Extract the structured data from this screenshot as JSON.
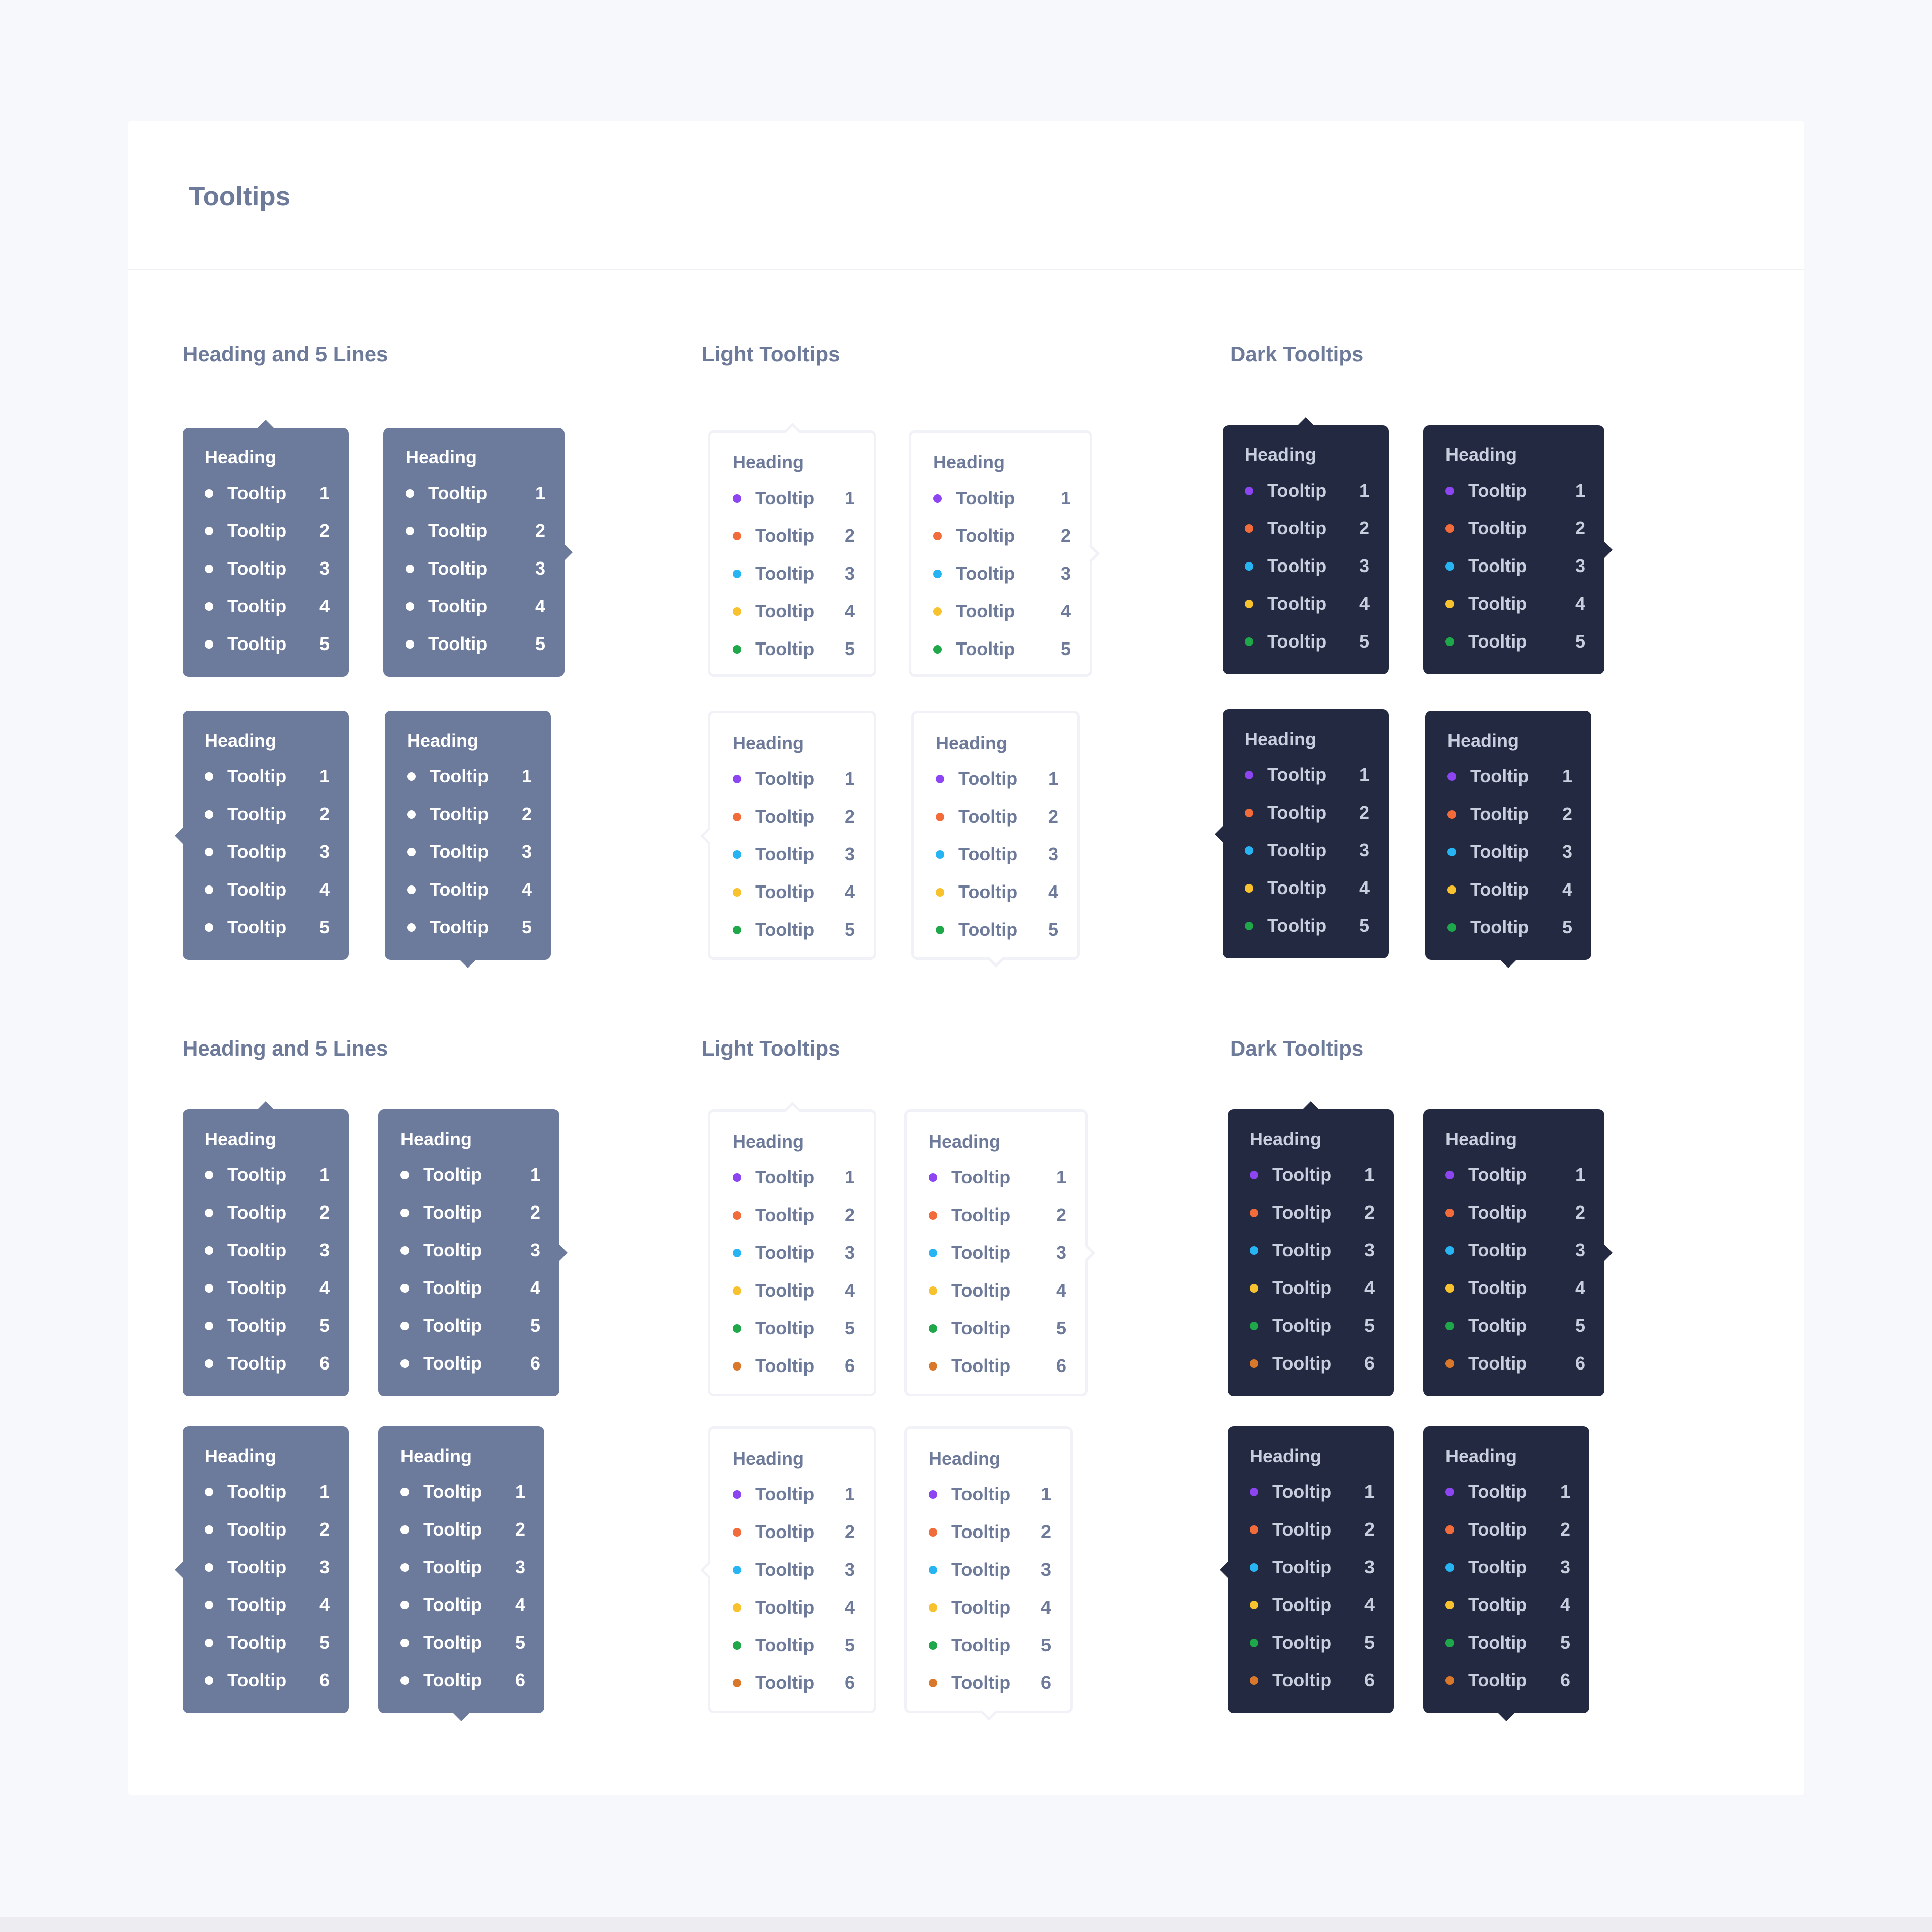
{
  "card": {
    "title": "Tooltips"
  },
  "sections": [
    "Heading and 5 Lines",
    "Light Tooltips",
    "Dark Tooltips",
    "Heading and 5 Lines",
    "Light Tooltips",
    "Dark Tooltips"
  ],
  "tooltip": {
    "heading": "Heading",
    "item_label": "Tooltip",
    "numbers": [
      "1",
      "2",
      "3",
      "4",
      "5",
      "6"
    ]
  },
  "colors": {
    "blue_bg": "#6c7a9c",
    "dark_bg": "#222941",
    "light_bg": "#ffffff",
    "dots": [
      "#8c45f0",
      "#f26b3a",
      "#27b4f2",
      "#f7c22d",
      "#1fa84a",
      "#d9782a"
    ]
  },
  "icons": {
    "bullet": "dot-icon",
    "pointer": "arrow-pointer-icon"
  }
}
